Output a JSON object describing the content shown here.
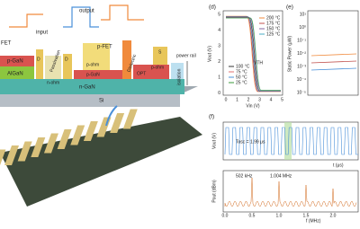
{
  "schematic": {
    "output": "output",
    "input": "input",
    "nfet": "FET",
    "pfet": "p-FET",
    "pgan_left": "p-GaN",
    "algan": "AlGaN",
    "d_left": "D",
    "passivation": "Passivation",
    "nohm": "n-ohm",
    "d_mid": "D",
    "pohm_left": "p-ohm",
    "pgan_mid": "p-GaN",
    "dielectric": "Dielectric",
    "s_right": "S",
    "pohm_right": "p-ohm",
    "opt": "OPT",
    "isolation": "isolation",
    "power_rail": "power rail",
    "ngan": "n-GaN",
    "si": "Si"
  },
  "panel_d": {
    "label": "(d)",
    "ylabel": "Vout (V)",
    "xlabel": "Vin (V)",
    "yticks": [
      "5",
      "4",
      "3",
      "2",
      "1",
      "0"
    ],
    "xticks": [
      "0",
      "1",
      "2",
      "3",
      "4",
      "5"
    ],
    "legend_high": [
      "200 °C",
      "175 °C",
      "150 °C",
      "125 °C"
    ],
    "legend_low": [
      "100 °C",
      "75 °C",
      "50 °C",
      "25 °C"
    ],
    "annotation": "VTH"
  },
  "panel_e": {
    "label": "(e)",
    "ylabel": "Static Power (μW)",
    "yticks": [
      "10¹",
      "10⁰",
      "10⁻¹",
      "10⁻²",
      "10⁻³",
      "10⁻⁴",
      "10⁻⁵"
    ]
  },
  "panel_f": {
    "label": "(f)",
    "top_ylabel": "Vout (V)",
    "top_xlabel": "t (μs)",
    "period": "Tosc = 1.99 μs",
    "bottom_ylabel": "Pout (dBm)",
    "bottom_xlabel": "f (MHz)",
    "xticks": [
      "0.0",
      "0.5",
      "1.0",
      "1.5",
      "2.0"
    ],
    "peak1": "502 kHz",
    "peak2": "1.004 MHz"
  }
}
